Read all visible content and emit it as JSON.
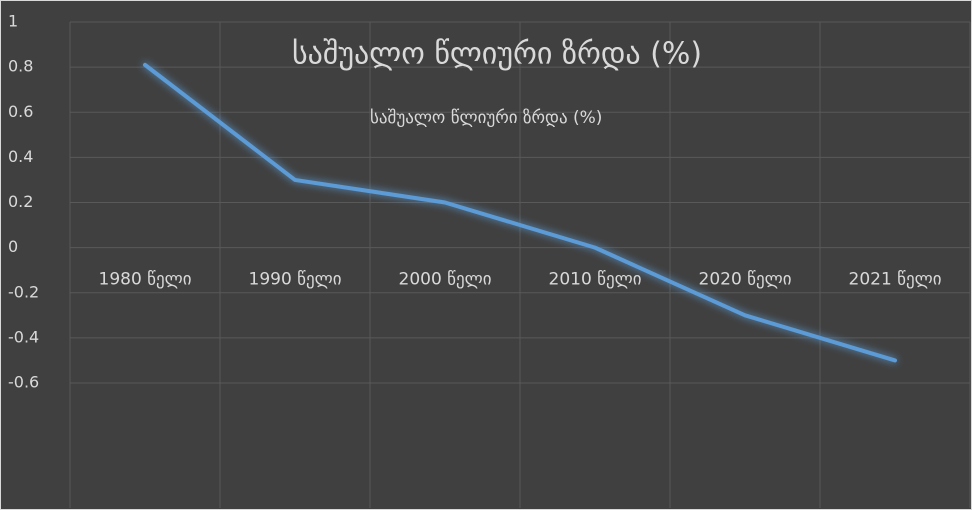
{
  "chart_data": {
    "type": "line",
    "title": "საშუალო წლიური ზრდა (%)",
    "categories": [
      "1980 წელი",
      "1990 წელი",
      "2000 წელი",
      "2010 წელი",
      "2020 წელი",
      "2021 წელი"
    ],
    "series": [
      {
        "name": "საშუალო წლიური ზრდა (%)",
        "color": "#5b9bd5",
        "values": [
          0.81,
          0.3,
          0.2,
          0,
          -0.3,
          -0.5
        ]
      }
    ],
    "ylim": [
      -0.6,
      1
    ],
    "yticks": [
      -0.6,
      -0.4,
      -0.2,
      0,
      0.2,
      0.4,
      0.6,
      0.8,
      1
    ],
    "grid": true,
    "legend": "top"
  }
}
